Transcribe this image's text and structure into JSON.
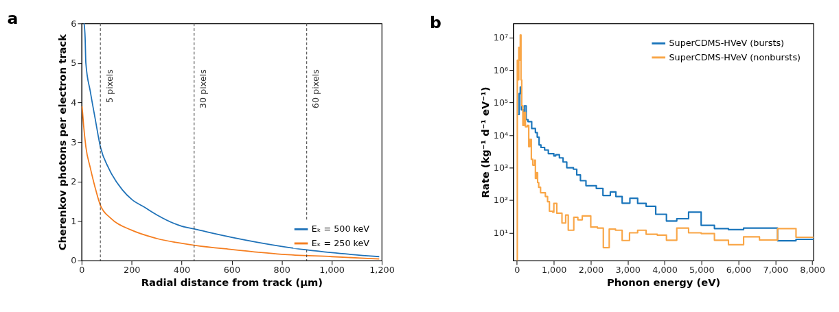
{
  "chart_data": [
    {
      "type": "line",
      "title": "a",
      "xlabel": "Radial distance from track (µm)",
      "ylabel": "Cherenkov photons per electron track",
      "xlim": [
        0,
        1200
      ],
      "xticks": [
        0,
        200,
        400,
        600,
        800,
        {
          "value": 1000,
          "label": "1,000"
        },
        {
          "value": 1200,
          "label": "1,200"
        }
      ],
      "ylim": [
        0,
        6
      ],
      "yticks": [
        0,
        1,
        2,
        3,
        4,
        5,
        6
      ],
      "grid": false,
      "legend": "bottom right",
      "line_style": "solid",
      "marker": "none",
      "series": [
        {
          "name": "Eₖ = 500 keV",
          "color": "#1f72b8",
          "x": [
            10,
            14,
            17,
            35,
            54,
            75,
            108,
            163,
            200,
            254,
            300,
            400,
            450,
            600,
            800,
            900,
            1000,
            1190
          ],
          "values": [
            6.0,
            5.65,
            5.0,
            4.27,
            3.6,
            2.88,
            2.34,
            1.79,
            1.55,
            1.34,
            1.16,
            0.87,
            0.8,
            0.59,
            0.36,
            0.27,
            0.2,
            0.1
          ]
        },
        {
          "name": "Eₖ = 250 keV",
          "color": "#f57e20",
          "x": [
            2,
            8,
            17,
            35,
            54,
            75,
            117,
            200,
            300,
            450,
            600,
            800,
            1000,
            1190
          ],
          "values": [
            3.9,
            3.42,
            2.88,
            2.34,
            1.85,
            1.4,
            1.07,
            0.77,
            0.56,
            0.39,
            0.28,
            0.16,
            0.1,
            0.04
          ]
        }
      ],
      "ref_lines": [
        {
          "axis": "x",
          "value": 75,
          "label": "5 pixels",
          "color": "#333333",
          "line_style": "dashed"
        },
        {
          "axis": "x",
          "value": 450,
          "label": "30 pixels",
          "color": "#333333",
          "line_style": "dashed"
        },
        {
          "axis": "x",
          "value": 900,
          "label": "60 pixels",
          "color": "#333333",
          "line_style": "dashed"
        }
      ]
    },
    {
      "type": "step",
      "title": "b",
      "xlabel": "Phonon energy (eV)",
      "ylabel": "Rate (kg⁻¹ d⁻¹ eV⁻¹)",
      "log": "y",
      "xlim": [
        -100,
        8030
      ],
      "xticks": [
        0,
        {
          "value": 1000,
          "label": "1,000"
        },
        {
          "value": 2000,
          "label": "2,000"
        },
        {
          "value": 3000,
          "label": "3,000"
        },
        {
          "value": 4000,
          "label": "4,000"
        },
        {
          "value": 5000,
          "label": "5,000"
        },
        {
          "value": 6000,
          "label": "6,000"
        },
        {
          "value": 7000,
          "label": "7,000"
        },
        {
          "value": 8000,
          "label": "8,000"
        }
      ],
      "ylim": [
        1.4,
        27000000
      ],
      "yticks": [
        {
          "value": 10,
          "label": "10¹"
        },
        {
          "value": 100,
          "label": "10²"
        },
        {
          "value": 1000,
          "label": "10³"
        },
        {
          "value": 10000,
          "label": "10⁴"
        },
        {
          "value": 100000,
          "label": "10⁵"
        },
        {
          "value": 1000000,
          "label": "10⁶"
        },
        {
          "value": 10000000,
          "label": "10⁷"
        }
      ],
      "grid": false,
      "legend": "top right",
      "line_style": "solid",
      "marker": "none",
      "series": [
        {
          "name": "SuperCDMS-HVeV (bursts)",
          "color": "#1a75bb",
          "x": [
            30,
            60,
            90,
            120,
            170,
            200,
            250,
            300,
            400,
            500,
            550,
            600,
            650,
            750,
            850,
            1000,
            1050,
            1150,
            1250,
            1350,
            1530,
            1620,
            1720,
            1870,
            2150,
            2330,
            2530,
            2680,
            2850,
            3060,
            3270,
            3500,
            3760,
            4050,
            4330,
            4650,
            4990,
            5350,
            5730,
            6140,
            7060,
            7560,
            8030
          ],
          "values": [
            43000,
            190000,
            300000,
            60000,
            30000,
            80000,
            30000,
            26000,
            16000,
            12000,
            8700,
            5000,
            4200,
            3500,
            2700,
            2300,
            2500,
            2000,
            1500,
            1000,
            900,
            600,
            400,
            280,
            230,
            140,
            180,
            130,
            81,
            115,
            80,
            65,
            37,
            23,
            27,
            43,
            17,
            13.5,
            12.5,
            14,
            5.7,
            6.3,
            6.3
          ]
        },
        {
          "name": "SuperCDMS-HVeV (nonbursts)",
          "color": "#f9a647",
          "x": [
            -10,
            10,
            30,
            50,
            70,
            90,
            110,
            130,
            160,
            200,
            230,
            280,
            320,
            350,
            390,
            430,
            480,
            500,
            530,
            560,
            590,
            640,
            770,
            830,
            880,
            970,
            1000,
            1080,
            1220,
            1320,
            1390,
            1540,
            1650,
            1770,
            2000,
            2180,
            2340,
            2500,
            2670,
            2850,
            3050,
            3270,
            3500,
            3800,
            4050,
            4330,
            4650,
            4990,
            5350,
            5730,
            6140,
            6570,
            7060,
            7560,
            8030
          ],
          "values": [
            1.5,
            2000000,
            500000,
            5000000,
            2000000,
            12000000,
            500000,
            80000,
            20000,
            50000,
            18000,
            20000,
            4400,
            7400,
            1800,
            1200,
            1700,
            470,
            700,
            350,
            250,
            170,
            130,
            90,
            46,
            43,
            80,
            40,
            20,
            35,
            12,
            30,
            25,
            33,
            15,
            14,
            3.5,
            13,
            12,
            5.8,
            10,
            12,
            9,
            8.5,
            5.9,
            14,
            10,
            9.5,
            5.9,
            4.3,
            7.5,
            6,
            13.5,
            7.3,
            7.3
          ]
        }
      ]
    }
  ]
}
